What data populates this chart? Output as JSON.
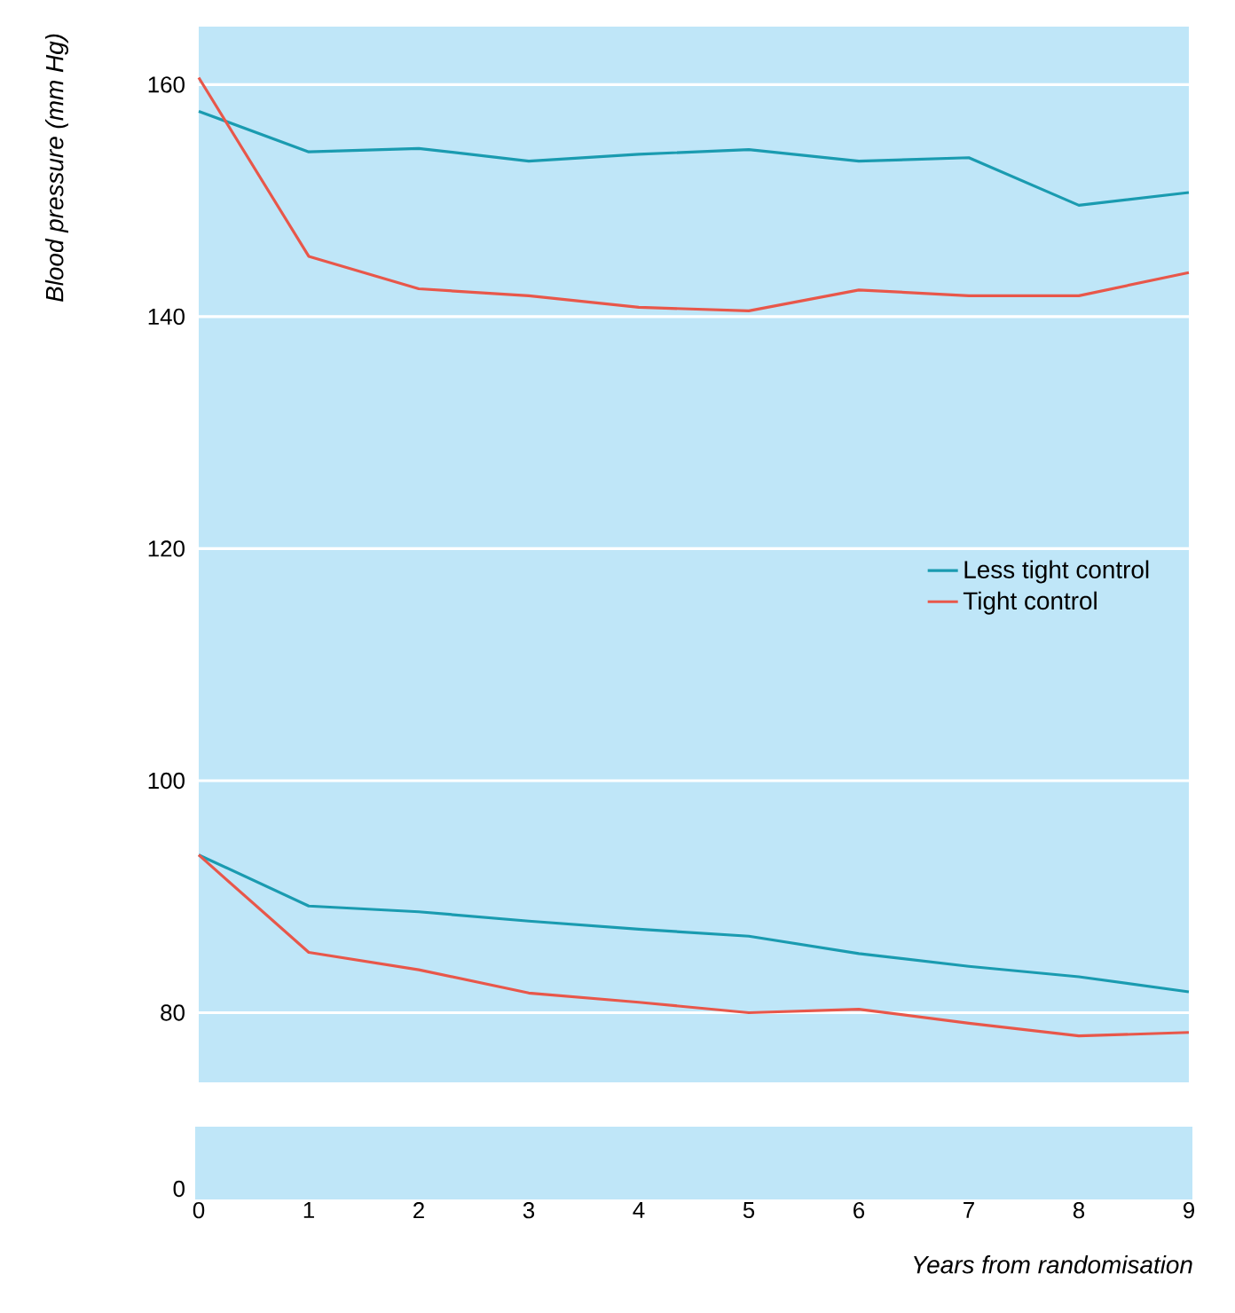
{
  "chart_data": {
    "type": "line",
    "ylabel": "Blood pressure (mm Hg)",
    "xlabel": "Years from randomisation",
    "xlim": [
      0,
      9
    ],
    "xticks": [
      0,
      1,
      2,
      3,
      4,
      5,
      6,
      7,
      8,
      9
    ],
    "ylim": [
      74,
      165
    ],
    "yticks": [
      80,
      100,
      120,
      140,
      160
    ],
    "grid": "y",
    "legend": "right",
    "annotations": [
      "0"
    ],
    "series": [
      {
        "name": "Less tight control",
        "color": "#1a9bb0",
        "x": [
          0,
          1,
          2,
          3,
          4,
          5,
          6,
          7,
          8,
          9
        ],
        "values": [
          157.7,
          154.2,
          154.5,
          153.4,
          154.0,
          154.4,
          153.4,
          153.7,
          149.6,
          150.7
        ]
      },
      {
        "name": "Tight control",
        "color": "#e8574a",
        "x": [
          0,
          1,
          2,
          3,
          4,
          5,
          6,
          7,
          8,
          9
        ],
        "values": [
          160.6,
          145.2,
          142.4,
          141.8,
          140.8,
          140.5,
          142.3,
          141.8,
          141.8,
          143.8
        ]
      },
      {
        "color": "#1a9bb0",
        "x": [
          0,
          1,
          2,
          3,
          4,
          5,
          6,
          7,
          8,
          9
        ],
        "values": [
          93.6,
          89.2,
          88.7,
          87.9,
          87.2,
          86.6,
          85.1,
          84.0,
          83.1,
          81.8
        ]
      },
      {
        "color": "#e8574a",
        "x": [
          0,
          1,
          2,
          3,
          4,
          5,
          6,
          7,
          8,
          9
        ],
        "values": [
          93.6,
          85.2,
          83.7,
          81.7,
          80.9,
          80.0,
          80.3,
          79.1,
          78.0,
          78.3
        ]
      }
    ]
  }
}
